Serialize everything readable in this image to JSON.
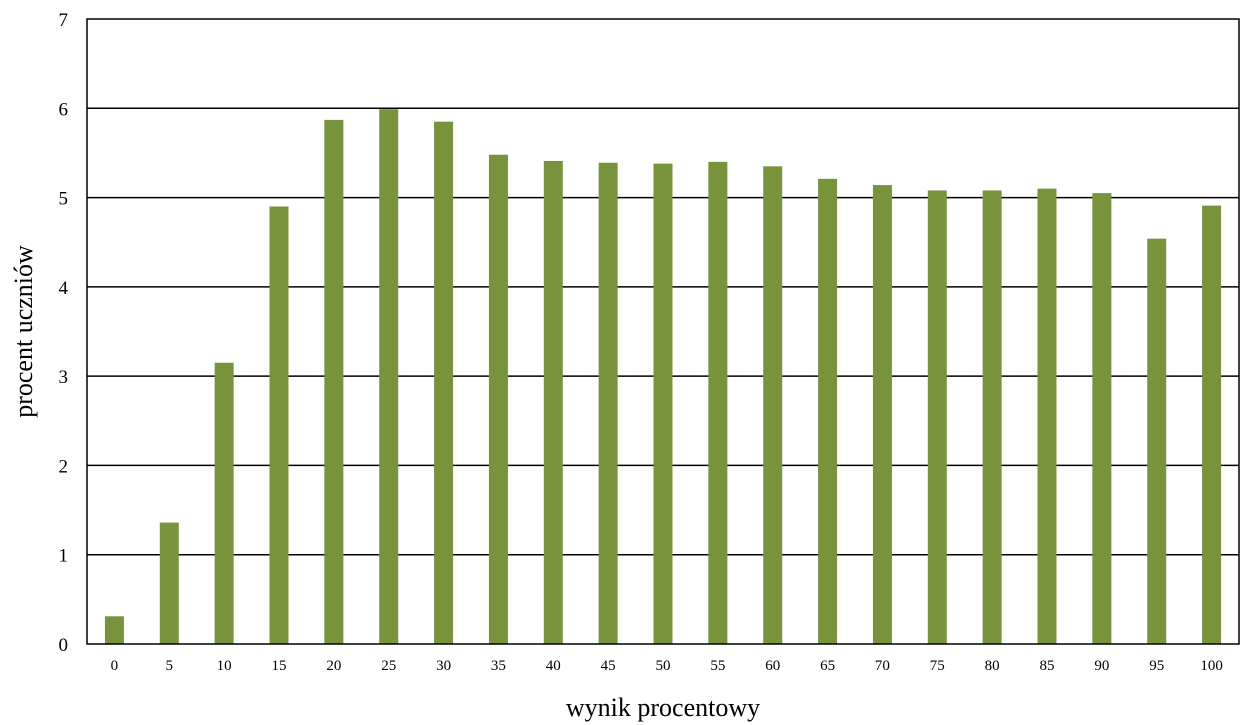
{
  "chart_data": {
    "type": "bar",
    "title": "",
    "xlabel": "wynik procentowy",
    "ylabel": "procent uczniów",
    "ylim": [
      0,
      7
    ],
    "yticks": [
      0,
      1,
      2,
      3,
      4,
      5,
      6,
      7
    ],
    "grid": true,
    "categories": [
      "0",
      "5",
      "10",
      "15",
      "20",
      "25",
      "30",
      "35",
      "40",
      "45",
      "50",
      "55",
      "60",
      "65",
      "70",
      "75",
      "80",
      "85",
      "90",
      "95",
      "100"
    ],
    "values": [
      0.31,
      1.36,
      3.15,
      4.9,
      5.87,
      5.99,
      5.85,
      5.48,
      5.41,
      5.39,
      5.38,
      5.4,
      5.35,
      5.21,
      5.14,
      5.08,
      5.08,
      5.1,
      5.05,
      4.54,
      4.91
    ],
    "colors": {
      "bar": "#77933c",
      "grid": "#000000",
      "frame": "#000000"
    }
  }
}
